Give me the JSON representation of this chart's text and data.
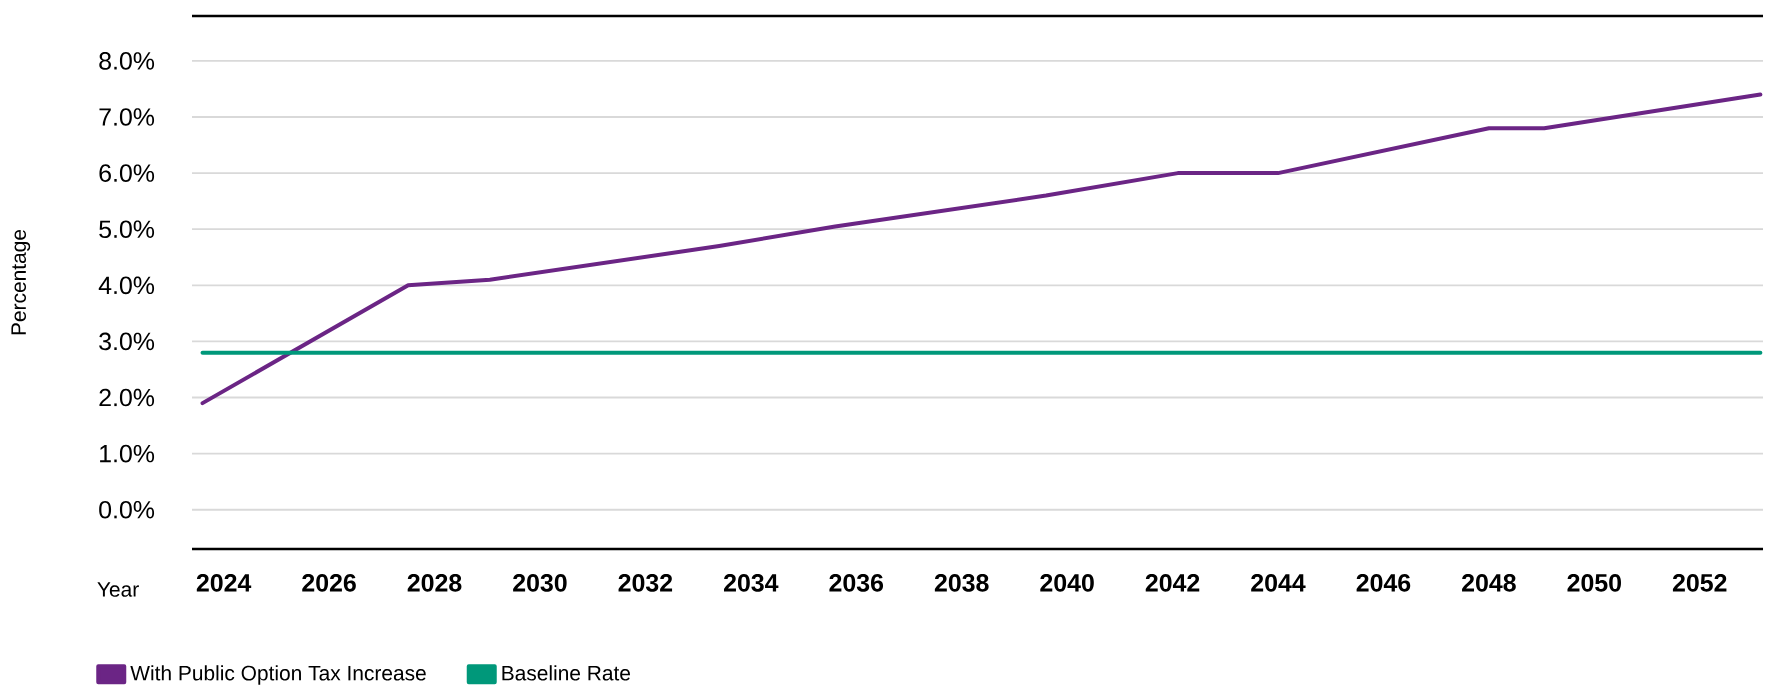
{
  "chart_data": {
    "type": "line",
    "xlabel": "Year",
    "ylabel": "Percentage",
    "xlim": [
      2023.4,
      2053.2
    ],
    "ylim": [
      -0.7,
      8.8
    ],
    "xticks": [
      2024,
      2026,
      2028,
      2030,
      2032,
      2034,
      2036,
      2038,
      2040,
      2042,
      2044,
      2046,
      2048,
      2050,
      2052
    ],
    "yticks": [
      {
        "value": 0,
        "label": "0.0%"
      },
      {
        "value": 1,
        "label": "1.0%"
      },
      {
        "value": 2,
        "label": "2.0%"
      },
      {
        "value": 3,
        "label": "3.0%"
      },
      {
        "value": 4,
        "label": "4.0%"
      },
      {
        "value": 5,
        "label": "5.0%"
      },
      {
        "value": 6,
        "label": "6.0%"
      },
      {
        "value": 7,
        "label": "7.0%"
      },
      {
        "value": 8,
        "label": "8.0%"
      }
    ],
    "grid": "y",
    "legend": "bottom left",
    "series": [
      {
        "name": "With Public Option Tax Increase",
        "color": "#6b2585",
        "x": [
          2023.6,
          2027.5,
          2029.05,
          2033.4,
          2035.6,
          2039.6,
          2042.1,
          2044.0,
          2048.0,
          2049.05,
          2053.15
        ],
        "values": [
          1.9,
          4.0,
          4.1,
          4.7,
          5.05,
          5.6,
          6.0,
          6.0,
          6.8,
          6.8,
          7.4
        ]
      },
      {
        "name": "Baseline Rate",
        "color": "#00987a",
        "x": [
          2023.6,
          2053.15
        ],
        "values": [
          2.8,
          2.8
        ]
      }
    ]
  }
}
